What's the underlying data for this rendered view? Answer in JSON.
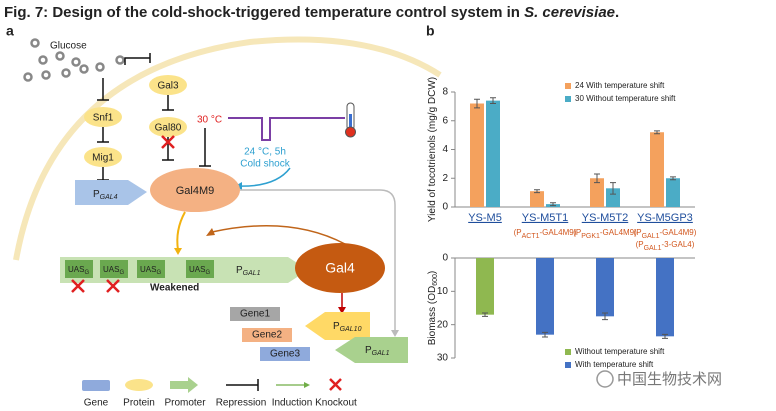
{
  "figure_title": {
    "main": "Fig. 7: Design of the cold-shock-triggered temperature control system in ",
    "italic": "S. cerevisiae",
    "end": "."
  },
  "panel_a": {
    "label": "a",
    "glucose": "Glucose",
    "proteins": {
      "gal3": "Gal3",
      "snf1": "Snf1",
      "gal80": "Gal80",
      "mig1": "Mig1",
      "gal4m9": "Gal4M9",
      "gal4": "Gal4"
    },
    "temperature": "30 °C",
    "cold_shock": [
      "24 °C, 5h",
      "Cold shock"
    ],
    "promoter_gal4": [
      "P",
      "GAL4"
    ],
    "uas": [
      [
        "UAS",
        "G"
      ],
      [
        "UAS",
        "G"
      ],
      [
        "UAS",
        "G"
      ],
      [
        "UAS",
        "G"
      ]
    ],
    "promoter_gal1": [
      "P",
      "GAL1"
    ],
    "weakened": "Weakened",
    "genes": [
      "Gene1",
      "Gene2",
      "Gene3"
    ],
    "promoter_gal10": [
      "P",
      "GAL10"
    ],
    "promoter_gal1_b": [
      "P",
      "GAL1"
    ],
    "legend": [
      "Gene",
      "Protein",
      "Promoter",
      "Repression",
      "Induction",
      "Knockout"
    ]
  },
  "panel_b": {
    "label": "b"
  },
  "watermark": "中国生物技术网",
  "chart_data": [
    {
      "type": "bar",
      "ylabel": [
        "Yield of tocotrienols (mg/g DCW)"
      ],
      "categories": [
        "YS-M5",
        "YS-M5T1",
        "YS-M5T2",
        "YS-M5GP3"
      ],
      "category_notes": [
        [],
        [
          [
            "(P",
            "ACT1",
            "-GAL4M9)"
          ]
        ],
        [
          [
            "(P",
            "PGK1",
            "-GAL4M9)"
          ]
        ],
        [
          [
            "(P",
            "GAL1",
            "-GAL4M9)"
          ],
          [
            "(P",
            "GAL1",
            "-3-GAL4)"
          ]
        ]
      ],
      "series": [
        {
          "name": "24 With temperature shift",
          "color": "#f4a15d",
          "values": [
            7.2,
            1.1,
            2.0,
            5.2
          ],
          "errors": [
            0.3,
            0.1,
            0.3,
            0.1
          ]
        },
        {
          "name": "30 Without temperature shift",
          "color": "#4bacc6",
          "values": [
            7.4,
            0.2,
            1.3,
            2.0
          ],
          "errors": [
            0.2,
            0.1,
            0.4,
            0.1
          ]
        }
      ],
      "ylim": [
        0,
        8
      ],
      "yticks": [
        0,
        2,
        4,
        6,
        8
      ],
      "legend": "upper right"
    },
    {
      "type": "bar",
      "inverted": true,
      "ylabel": [
        "Biomass (OD",
        "600",
        ")"
      ],
      "series": [
        {
          "name": "Without temperature shift",
          "color": "#8fb850",
          "values": [
            17,
            null,
            null,
            null
          ],
          "errors": [
            0.5,
            null,
            null,
            null
          ]
        },
        {
          "name": "With temperature shift",
          "color": "#4472c4",
          "values": [
            null,
            23,
            17.5,
            23.5
          ],
          "errors": [
            null,
            0.7,
            1.0,
            0.6
          ]
        }
      ],
      "ylim": [
        0,
        30
      ],
      "yticks": [
        0,
        10,
        20,
        30
      ],
      "legend": "lower right"
    }
  ]
}
